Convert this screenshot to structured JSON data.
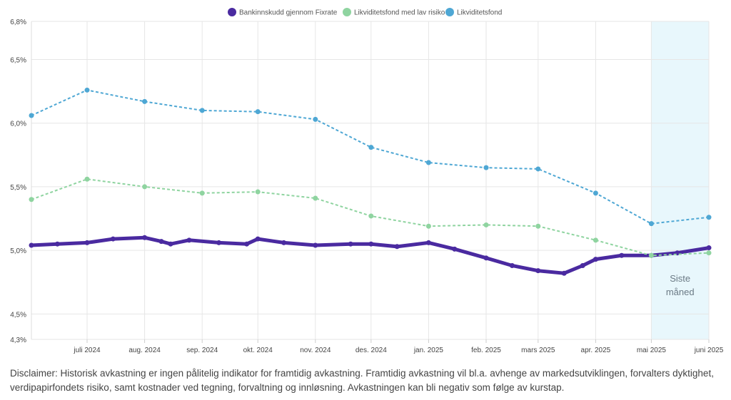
{
  "chart_data": {
    "type": "line",
    "legend_position": "top-center",
    "grid": true,
    "ylim": [
      4.3,
      6.8
    ],
    "y_ticks": [
      4.3,
      4.5,
      5.0,
      5.5,
      6.0,
      6.5,
      6.8
    ],
    "y_tick_labels": [
      "4,3%",
      "4,5%",
      "5,0%",
      "5,5%",
      "6,0%",
      "6,5%",
      "6,8%"
    ],
    "x_range": [
      "2024-06-01",
      "2025-06-01"
    ],
    "x_ticks": [
      "2024-07-01",
      "2024-08-01",
      "2024-09-01",
      "2024-10-01",
      "2024-11-01",
      "2024-12-01",
      "2025-01-01",
      "2025-02-01",
      "2025-03-01",
      "2025-04-01",
      "2025-05-01",
      "2025-06-01"
    ],
    "x_tick_labels": [
      "juli 2024",
      "aug. 2024",
      "sep. 2024",
      "okt. 2024",
      "nov. 2024",
      "des. 2024",
      "jan. 2025",
      "feb. 2025",
      "mars 2025",
      "apr. 2025",
      "mai 2025",
      "juni 2025"
    ],
    "highlight_band": {
      "x_start": "2025-05-01",
      "x_end": "2025-06-01",
      "label_line1": "Siste",
      "label_line2": "måned",
      "color": "#e8f7fc"
    },
    "series": [
      {
        "name": "Bankinnskudd gjennom Fixrate",
        "color": "#4a2aa0",
        "style": "dots",
        "points": [
          [
            "2024-06-01",
            5.04
          ],
          [
            "2024-06-15",
            5.05
          ],
          [
            "2024-07-01",
            5.06
          ],
          [
            "2024-07-15",
            5.09
          ],
          [
            "2024-08-01",
            5.1
          ],
          [
            "2024-08-10",
            5.07
          ],
          [
            "2024-08-15",
            5.05
          ],
          [
            "2024-08-25",
            5.08
          ],
          [
            "2024-09-10",
            5.06
          ],
          [
            "2024-09-25",
            5.05
          ],
          [
            "2024-10-01",
            5.09
          ],
          [
            "2024-10-15",
            5.06
          ],
          [
            "2024-11-01",
            5.04
          ],
          [
            "2024-11-20",
            5.05
          ],
          [
            "2024-12-01",
            5.05
          ],
          [
            "2024-12-15",
            5.03
          ],
          [
            "2025-01-01",
            5.06
          ],
          [
            "2025-01-15",
            5.01
          ],
          [
            "2025-02-01",
            4.94
          ],
          [
            "2025-02-15",
            4.88
          ],
          [
            "2025-03-01",
            4.84
          ],
          [
            "2025-03-15",
            4.82
          ],
          [
            "2025-03-25",
            4.88
          ],
          [
            "2025-04-01",
            4.93
          ],
          [
            "2025-04-15",
            4.96
          ],
          [
            "2025-05-01",
            4.96
          ],
          [
            "2025-05-15",
            4.98
          ],
          [
            "2025-06-01",
            5.02
          ]
        ]
      },
      {
        "name": "Likviditetsfond med lav risiko",
        "color": "#8fd4a0",
        "style": "dashed",
        "points": [
          [
            "2024-06-01",
            5.4
          ],
          [
            "2024-07-01",
            5.56
          ],
          [
            "2024-08-01",
            5.5
          ],
          [
            "2024-09-01",
            5.45
          ],
          [
            "2024-10-01",
            5.46
          ],
          [
            "2024-11-01",
            5.41
          ],
          [
            "2024-12-01",
            5.27
          ],
          [
            "2025-01-01",
            5.19
          ],
          [
            "2025-02-01",
            5.2
          ],
          [
            "2025-03-01",
            5.19
          ],
          [
            "2025-04-01",
            5.08
          ],
          [
            "2025-05-01",
            4.96
          ],
          [
            "2025-06-01",
            4.98
          ]
        ]
      },
      {
        "name": "Likviditetsfond",
        "color": "#4ea7d4",
        "style": "dashed",
        "points": [
          [
            "2024-06-01",
            6.06
          ],
          [
            "2024-07-01",
            6.26
          ],
          [
            "2024-08-01",
            6.17
          ],
          [
            "2024-09-01",
            6.1
          ],
          [
            "2024-10-01",
            6.09
          ],
          [
            "2024-11-01",
            6.03
          ],
          [
            "2024-12-01",
            5.81
          ],
          [
            "2025-01-01",
            5.69
          ],
          [
            "2025-02-01",
            5.65
          ],
          [
            "2025-03-01",
            5.64
          ],
          [
            "2025-04-01",
            5.45
          ],
          [
            "2025-05-01",
            5.21
          ],
          [
            "2025-06-01",
            5.26
          ]
        ]
      }
    ]
  },
  "disclaimer": "Disclaimer: Historisk avkastning er ingen pålitelig indikator for framtidig avkastning. Framtidig avkastning vil bl.a. avhenge av markedsutviklingen, forvalters dyktighet, verdipapirfondets risiko, samt kostnader ved tegning, forvaltning og innløsning. Avkastningen kan bli negativ som følge av kurstap."
}
